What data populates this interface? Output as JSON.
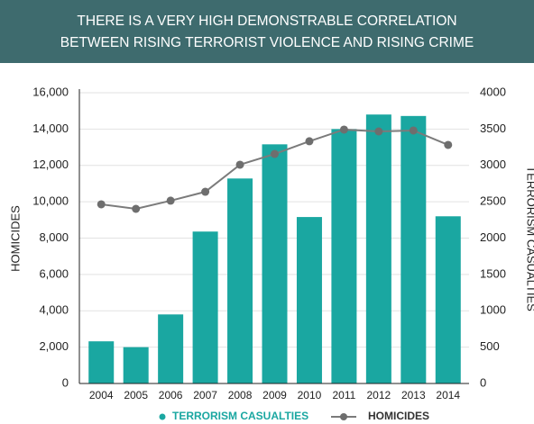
{
  "chart_data": {
    "type": "bar",
    "title": [
      "THERE IS A VERY HIGH DEMONSTRABLE CORRELATION",
      "BETWEEN RISING TERRORIST VIOLENCE AND RISING CRIME"
    ],
    "ylabel": "HOMICIDES",
    "y2label": "TERRORISM CASUALTIES",
    "categories": [
      "2004",
      "2005",
      "2006",
      "2007",
      "2008",
      "2009",
      "2010",
      "2011",
      "2012",
      "2013",
      "2014"
    ],
    "series": [
      {
        "name": "TERRORISM CASUALTIES",
        "type": "bar",
        "axis": "y2",
        "color": "#1aa7a1",
        "values": [
          580,
          500,
          950,
          2090,
          2820,
          3290,
          2290,
          3500,
          3700,
          3680,
          2300
        ]
      },
      {
        "name": "HOMICIDES",
        "type": "line",
        "color": "#7b7b7b",
        "marker_color": "#6e6e6e",
        "values": [
          9860,
          9610,
          10060,
          10550,
          12040,
          12630,
          13330,
          13970,
          13870,
          13920,
          13130
        ]
      }
    ],
    "ylim": [
      0,
      16000
    ],
    "yticks": [
      0,
      {
        "value": 2000,
        "label": "2,000"
      },
      {
        "value": 4000,
        "label": "4,000"
      },
      {
        "value": 6000,
        "label": "6,000"
      },
      {
        "value": 8000,
        "label": "8,000"
      },
      {
        "value": 10000,
        "label": "10,000"
      },
      {
        "value": 12000,
        "label": "12,000"
      },
      {
        "value": 14000,
        "label": "14,000"
      },
      {
        "value": 16000,
        "label": "16,000"
      }
    ],
    "y2lim": [
      0,
      4000
    ],
    "y2ticks": [
      0,
      500,
      1000,
      1500,
      2000,
      2500,
      3000,
      3500,
      4000
    ],
    "grid": true,
    "banner_color": "#3e6b6e"
  }
}
